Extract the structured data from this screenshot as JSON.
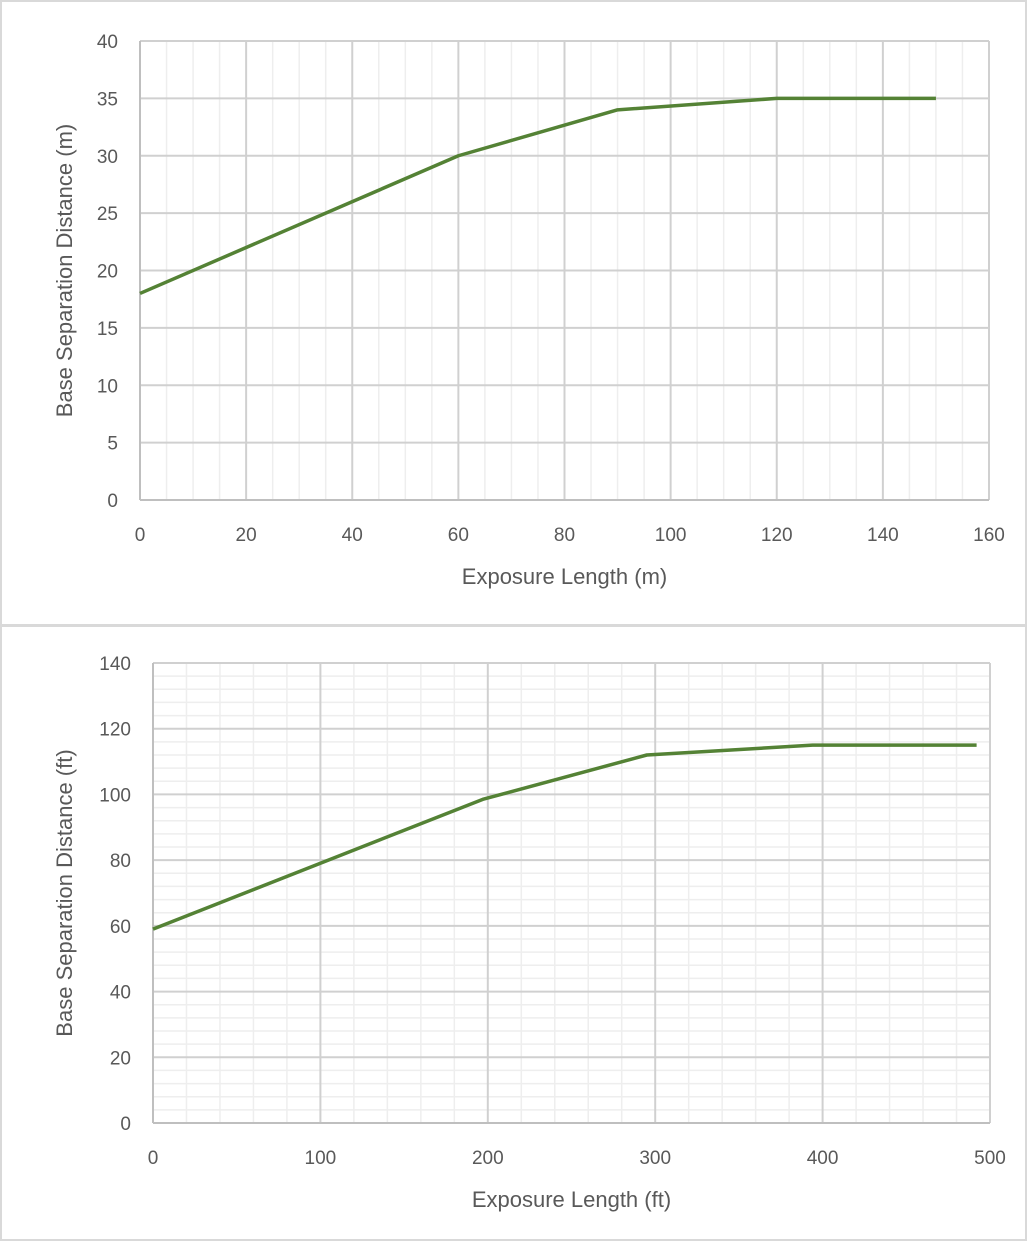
{
  "chart_data": [
    {
      "type": "line",
      "title": "",
      "xlabel": "Exposure Length (m)",
      "ylabel": "Base Separation Distance (m)",
      "xlim": [
        0,
        160
      ],
      "ylim": [
        0,
        40
      ],
      "x_ticks": [
        "0",
        "20",
        "40",
        "60",
        "80",
        "100",
        "120",
        "140",
        "160"
      ],
      "y_ticks": [
        "0",
        "5",
        "10",
        "15",
        "20",
        "25",
        "30",
        "35",
        "40"
      ],
      "grid": true,
      "series": [
        {
          "color": "#548235",
          "x": [
            0,
            60,
            90,
            120,
            150
          ],
          "y": [
            18,
            30,
            34,
            35,
            35
          ]
        }
      ]
    },
    {
      "type": "line",
      "title": "",
      "xlabel": "Exposure Length (ft)",
      "ylabel": "Base Separation Distance (ft)",
      "xlim": [
        0,
        500
      ],
      "ylim": [
        0,
        140
      ],
      "x_ticks": [
        "0",
        "100",
        "200",
        "300",
        "400",
        "500"
      ],
      "y_ticks": [
        "0",
        "20",
        "40",
        "60",
        "80",
        "100",
        "120",
        "140"
      ],
      "grid": true,
      "series": [
        {
          "color": "#548235",
          "x": [
            0,
            197,
            295,
            394,
            492
          ],
          "y": [
            59,
            98.5,
            112,
            115,
            115
          ]
        }
      ]
    }
  ]
}
